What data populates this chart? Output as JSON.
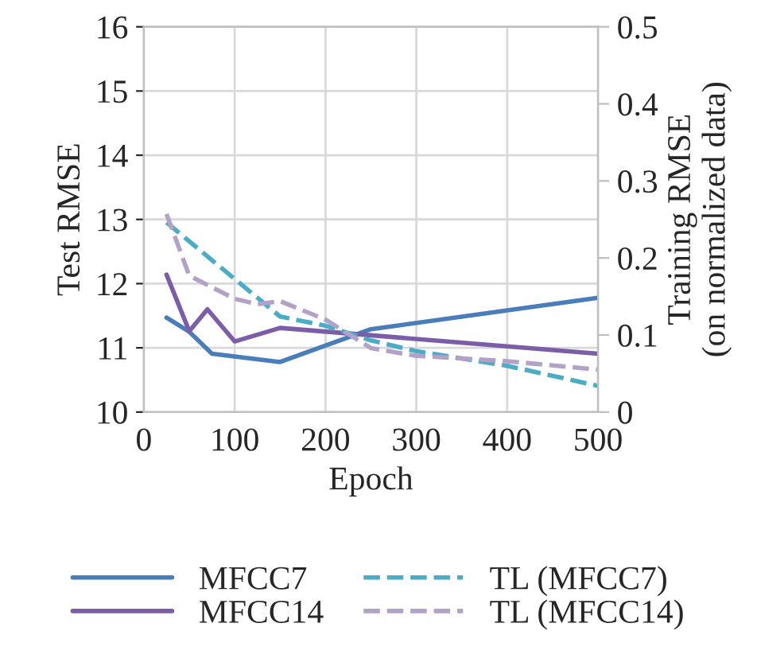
{
  "chart_data": {
    "type": "line",
    "xlabel": "Epoch",
    "ylabel": "Test RMSE",
    "y2label": "Training RMSE\n(on normalized data)",
    "xlim": [
      0,
      500
    ],
    "xticks": [
      0,
      100,
      200,
      300,
      400,
      500
    ],
    "ylim": [
      10,
      16
    ],
    "yticks": [
      10,
      11,
      12,
      13,
      14,
      15,
      16
    ],
    "y2lim": [
      0,
      0.5
    ],
    "y2ticks": [
      0,
      0.1,
      0.2,
      0.3,
      0.4,
      0.5
    ],
    "grid": true,
    "legend": "bottom",
    "series": [
      {
        "name": "MFCC7",
        "color": "#4a7ebb",
        "line_style": "solid",
        "x": [
          25,
          50,
          75,
          150,
          250,
          500
        ],
        "values": [
          11.47,
          11.25,
          10.91,
          10.78,
          11.29,
          11.78
        ]
      },
      {
        "name": "MFCC14",
        "color": "#7b5ea7",
        "line_style": "solid",
        "x": [
          25,
          50,
          70,
          100,
          150,
          500
        ],
        "values": [
          12.14,
          11.26,
          11.6,
          11.1,
          11.31,
          10.91
        ]
      },
      {
        "name": "TL (MFCC7)",
        "color": "#4bacc6",
        "line_style": "dashed",
        "axis": "y2",
        "x": [
          25,
          150,
          200,
          250,
          300,
          400,
          500
        ],
        "values": [
          0.246,
          0.124,
          0.112,
          0.093,
          0.079,
          0.06,
          0.034
        ]
      },
      {
        "name": "TL (MFCC14)",
        "color": "#b3a2c7",
        "line_style": "dashed",
        "axis": "y2",
        "x": [
          25,
          50,
          100,
          125,
          150,
          200,
          250,
          300,
          400,
          500
        ],
        "values": [
          0.257,
          0.177,
          0.147,
          0.14,
          0.144,
          0.12,
          0.083,
          0.073,
          0.066,
          0.055
        ]
      }
    ]
  }
}
